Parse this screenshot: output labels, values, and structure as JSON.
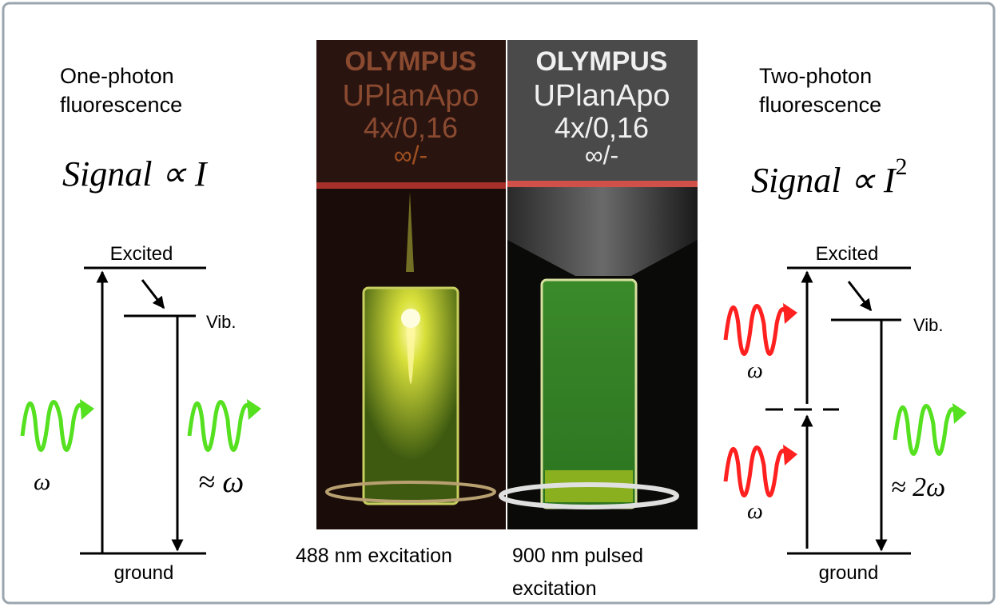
{
  "left": {
    "title": [
      "One-photon",
      "fluorescence"
    ],
    "formula": "Signal ∝ I",
    "excited": "Excited",
    "vib": "Vib.",
    "ground": "ground",
    "absorb": "ω",
    "emit": "≈ ω"
  },
  "photos": {
    "left": {
      "lens": [
        "OLYMPUS",
        "UPlanApo",
        "4x/0,16",
        "∞/-"
      ],
      "caption": [
        "488 nm excitation"
      ]
    },
    "right": {
      "lens": [
        "OLYMPUS",
        "UPlanApo",
        "4x/0,16",
        "∞/-"
      ],
      "caption": [
        "900 nm pulsed",
        "excitation"
      ]
    }
  },
  "right": {
    "title": [
      "Two-photon",
      "fluorescence"
    ],
    "formula": "Signal ∝ I",
    "formula_power": "2",
    "excited": "Excited",
    "vib": "Vib.",
    "ground": "ground",
    "absorb_upper": "ω",
    "absorb_lower": "ω",
    "emit": "≈ 2ω"
  }
}
